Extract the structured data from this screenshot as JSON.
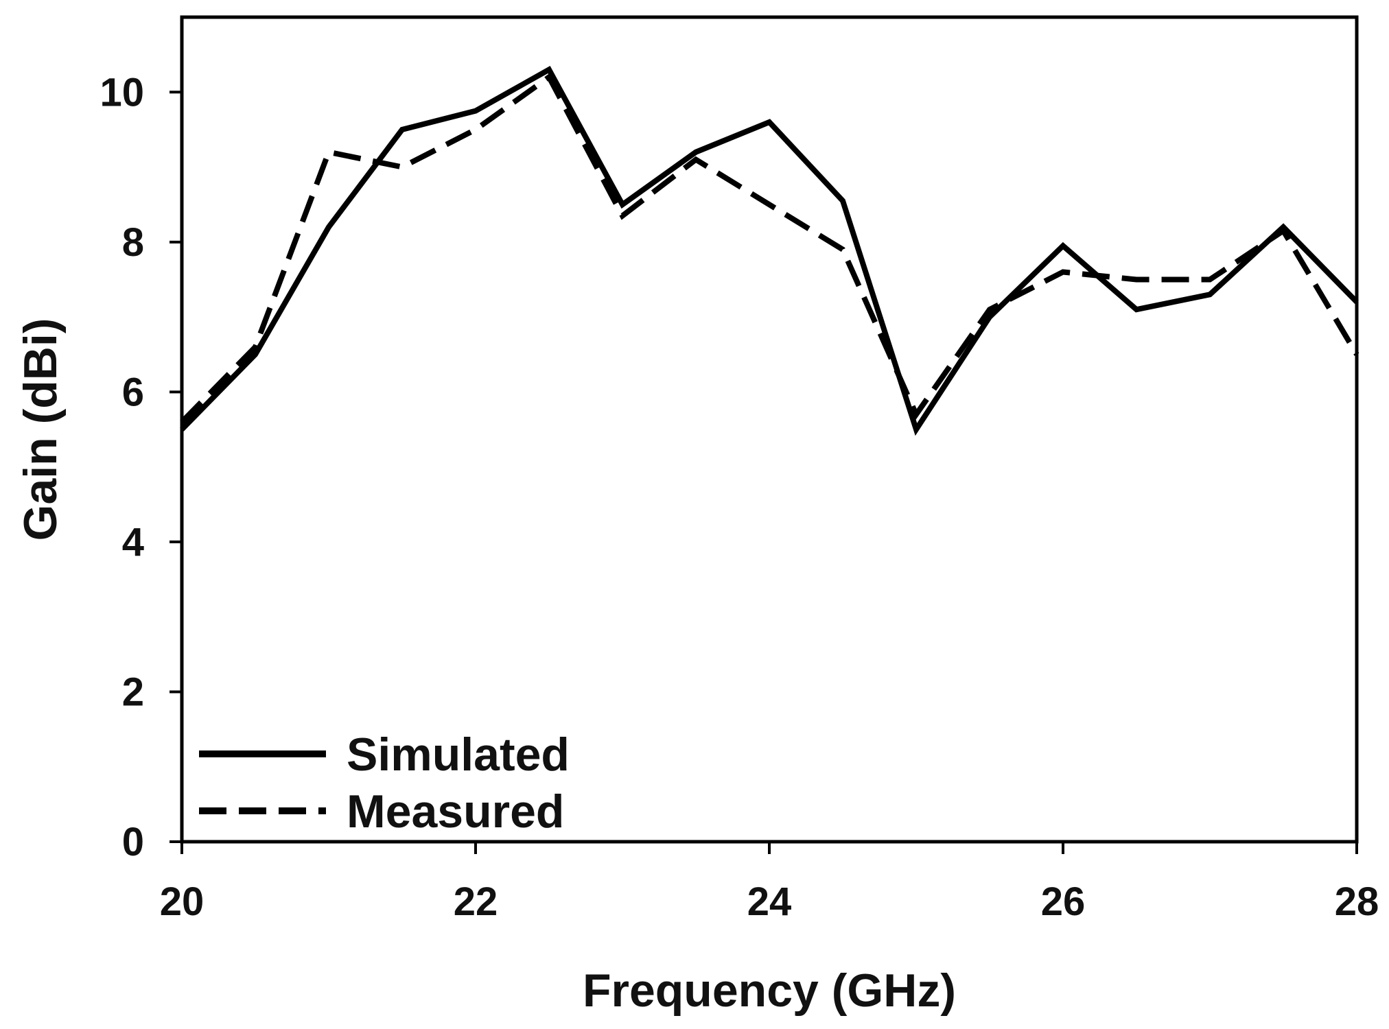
{
  "chart_data": {
    "type": "line",
    "title": "",
    "xlabel": "Frequency (GHz)",
    "ylabel": "Gain (dBi)",
    "xlim": [
      20,
      28
    ],
    "ylim": [
      0,
      11
    ],
    "xticks": [
      20,
      22,
      24,
      26,
      28
    ],
    "yticks": [
      0,
      2,
      4,
      6,
      8,
      10
    ],
    "grid": false,
    "legend_position": "bottom-left",
    "series": [
      {
        "name": "Simulated",
        "style": "solid",
        "color": "#000000",
        "x": [
          20,
          20.5,
          21,
          21.5,
          22,
          22.5,
          23,
          23.5,
          24,
          24.5,
          25,
          25.5,
          26,
          26.5,
          27,
          27.5,
          28
        ],
        "y": [
          5.5,
          6.5,
          8.2,
          9.5,
          9.75,
          10.3,
          8.5,
          9.2,
          9.6,
          8.55,
          5.5,
          7.0,
          7.95,
          7.1,
          7.3,
          8.2,
          7.2
        ]
      },
      {
        "name": "Measured",
        "style": "dashed",
        "color": "#000000",
        "x": [
          20,
          20.5,
          21,
          21.5,
          22,
          22.5,
          23,
          23.5,
          24,
          24.5,
          25,
          25.5,
          26,
          26.5,
          27,
          27.5,
          28
        ],
        "y": [
          5.6,
          6.6,
          9.2,
          9.0,
          9.5,
          10.2,
          8.35,
          9.1,
          8.5,
          7.9,
          5.7,
          7.1,
          7.6,
          7.5,
          7.5,
          8.15,
          6.5
        ]
      }
    ]
  }
}
